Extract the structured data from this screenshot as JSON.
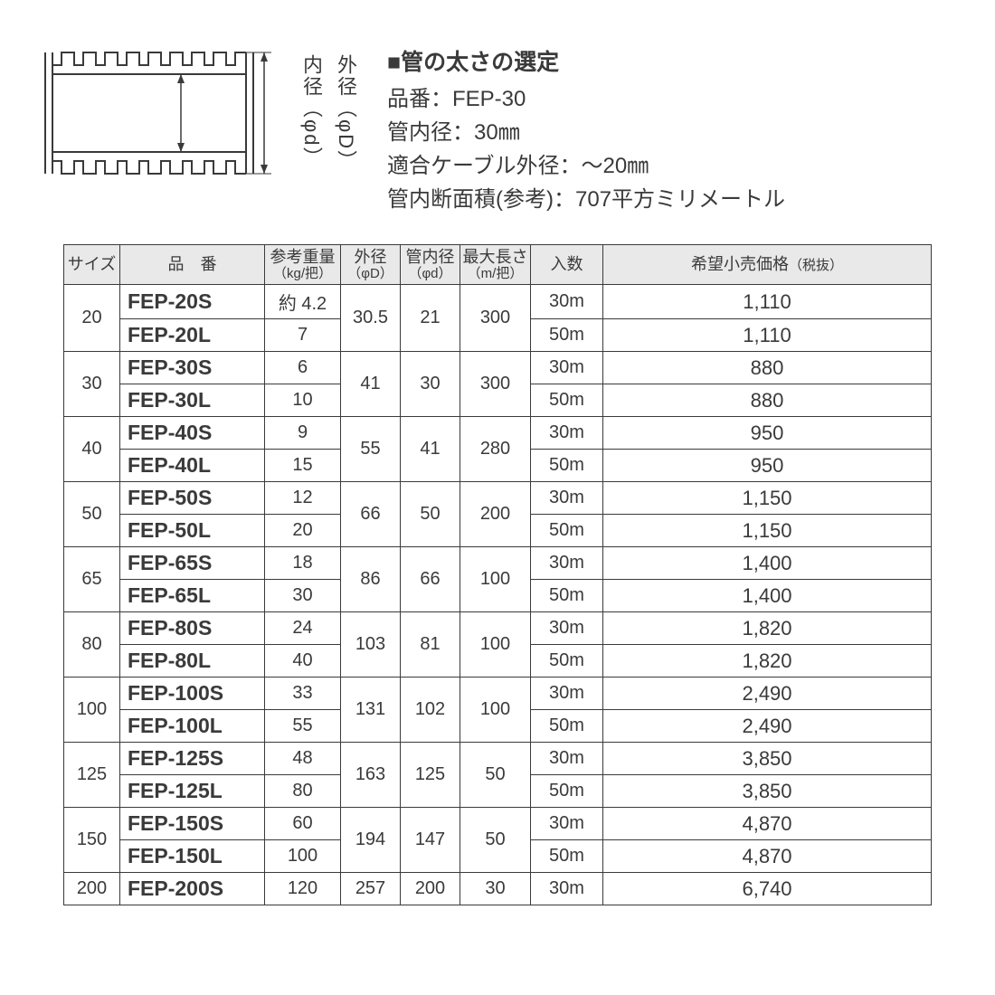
{
  "diagram": {
    "inner_label": "内径（φd）",
    "outer_label": "外径（φD）"
  },
  "spec": {
    "title": "■管の太さの選定",
    "lines": [
      "品番：FEP-30",
      "管内径：30㎜",
      "適合ケーブル外径：～20㎜",
      "管内断面積(参考)：707平方ミリメートル"
    ]
  },
  "headers": {
    "size": "サイズ",
    "part": "品　番",
    "weight": "参考重量",
    "weight_sub": "（kg/把）",
    "od": "外径",
    "od_sub": "（φD）",
    "id": "管内径",
    "id_sub": "（φd）",
    "maxlen": "最大長さ",
    "maxlen_sub": "（m/把）",
    "qty": "入数",
    "price": "希望小売価格",
    "price_sub": "（税抜）"
  },
  "groups": [
    {
      "size": "20",
      "od": "30.5",
      "id": "21",
      "maxlen": "300",
      "rows": [
        {
          "part": "FEP-20S",
          "wt": "約 4.2",
          "qty": "30m",
          "price": "1,110"
        },
        {
          "part": "FEP-20L",
          "wt": "7",
          "qty": "50m",
          "price": "1,110"
        }
      ]
    },
    {
      "size": "30",
      "od": "41",
      "id": "30",
      "maxlen": "300",
      "rows": [
        {
          "part": "FEP-30S",
          "wt": "6",
          "qty": "30m",
          "price": "880"
        },
        {
          "part": "FEP-30L",
          "wt": "10",
          "qty": "50m",
          "price": "880"
        }
      ]
    },
    {
      "size": "40",
      "od": "55",
      "id": "41",
      "maxlen": "280",
      "rows": [
        {
          "part": "FEP-40S",
          "wt": "9",
          "qty": "30m",
          "price": "950"
        },
        {
          "part": "FEP-40L",
          "wt": "15",
          "qty": "50m",
          "price": "950"
        }
      ]
    },
    {
      "size": "50",
      "od": "66",
      "id": "50",
      "maxlen": "200",
      "rows": [
        {
          "part": "FEP-50S",
          "wt": "12",
          "qty": "30m",
          "price": "1,150"
        },
        {
          "part": "FEP-50L",
          "wt": "20",
          "qty": "50m",
          "price": "1,150"
        }
      ]
    },
    {
      "size": "65",
      "od": "86",
      "id": "66",
      "maxlen": "100",
      "rows": [
        {
          "part": "FEP-65S",
          "wt": "18",
          "qty": "30m",
          "price": "1,400"
        },
        {
          "part": "FEP-65L",
          "wt": "30",
          "qty": "50m",
          "price": "1,400"
        }
      ]
    },
    {
      "size": "80",
      "od": "103",
      "id": "81",
      "maxlen": "100",
      "rows": [
        {
          "part": "FEP-80S",
          "wt": "24",
          "qty": "30m",
          "price": "1,820"
        },
        {
          "part": "FEP-80L",
          "wt": "40",
          "qty": "50m",
          "price": "1,820"
        }
      ]
    },
    {
      "size": "100",
      "od": "131",
      "id": "102",
      "maxlen": "100",
      "rows": [
        {
          "part": "FEP-100S",
          "wt": "33",
          "qty": "30m",
          "price": "2,490"
        },
        {
          "part": "FEP-100L",
          "wt": "55",
          "qty": "50m",
          "price": "2,490"
        }
      ]
    },
    {
      "size": "125",
      "od": "163",
      "id": "125",
      "maxlen": "50",
      "rows": [
        {
          "part": "FEP-125S",
          "wt": "48",
          "qty": "30m",
          "price": "3,850"
        },
        {
          "part": "FEP-125L",
          "wt": "80",
          "qty": "50m",
          "price": "3,850"
        }
      ]
    },
    {
      "size": "150",
      "od": "194",
      "id": "147",
      "maxlen": "50",
      "rows": [
        {
          "part": "FEP-150S",
          "wt": "60",
          "qty": "30m",
          "price": "4,870"
        },
        {
          "part": "FEP-150L",
          "wt": "100",
          "qty": "50m",
          "price": "4,870"
        }
      ]
    },
    {
      "size": "200",
      "od": "257",
      "id": "200",
      "maxlen": "30",
      "rows": [
        {
          "part": "FEP-200S",
          "wt": "120",
          "qty": "30m",
          "price": "6,740"
        }
      ]
    }
  ],
  "colors": {
    "text": "#3a3a3a",
    "header_bg": "#e9e9e9",
    "border": "#3a3a3a",
    "background": "#ffffff"
  }
}
